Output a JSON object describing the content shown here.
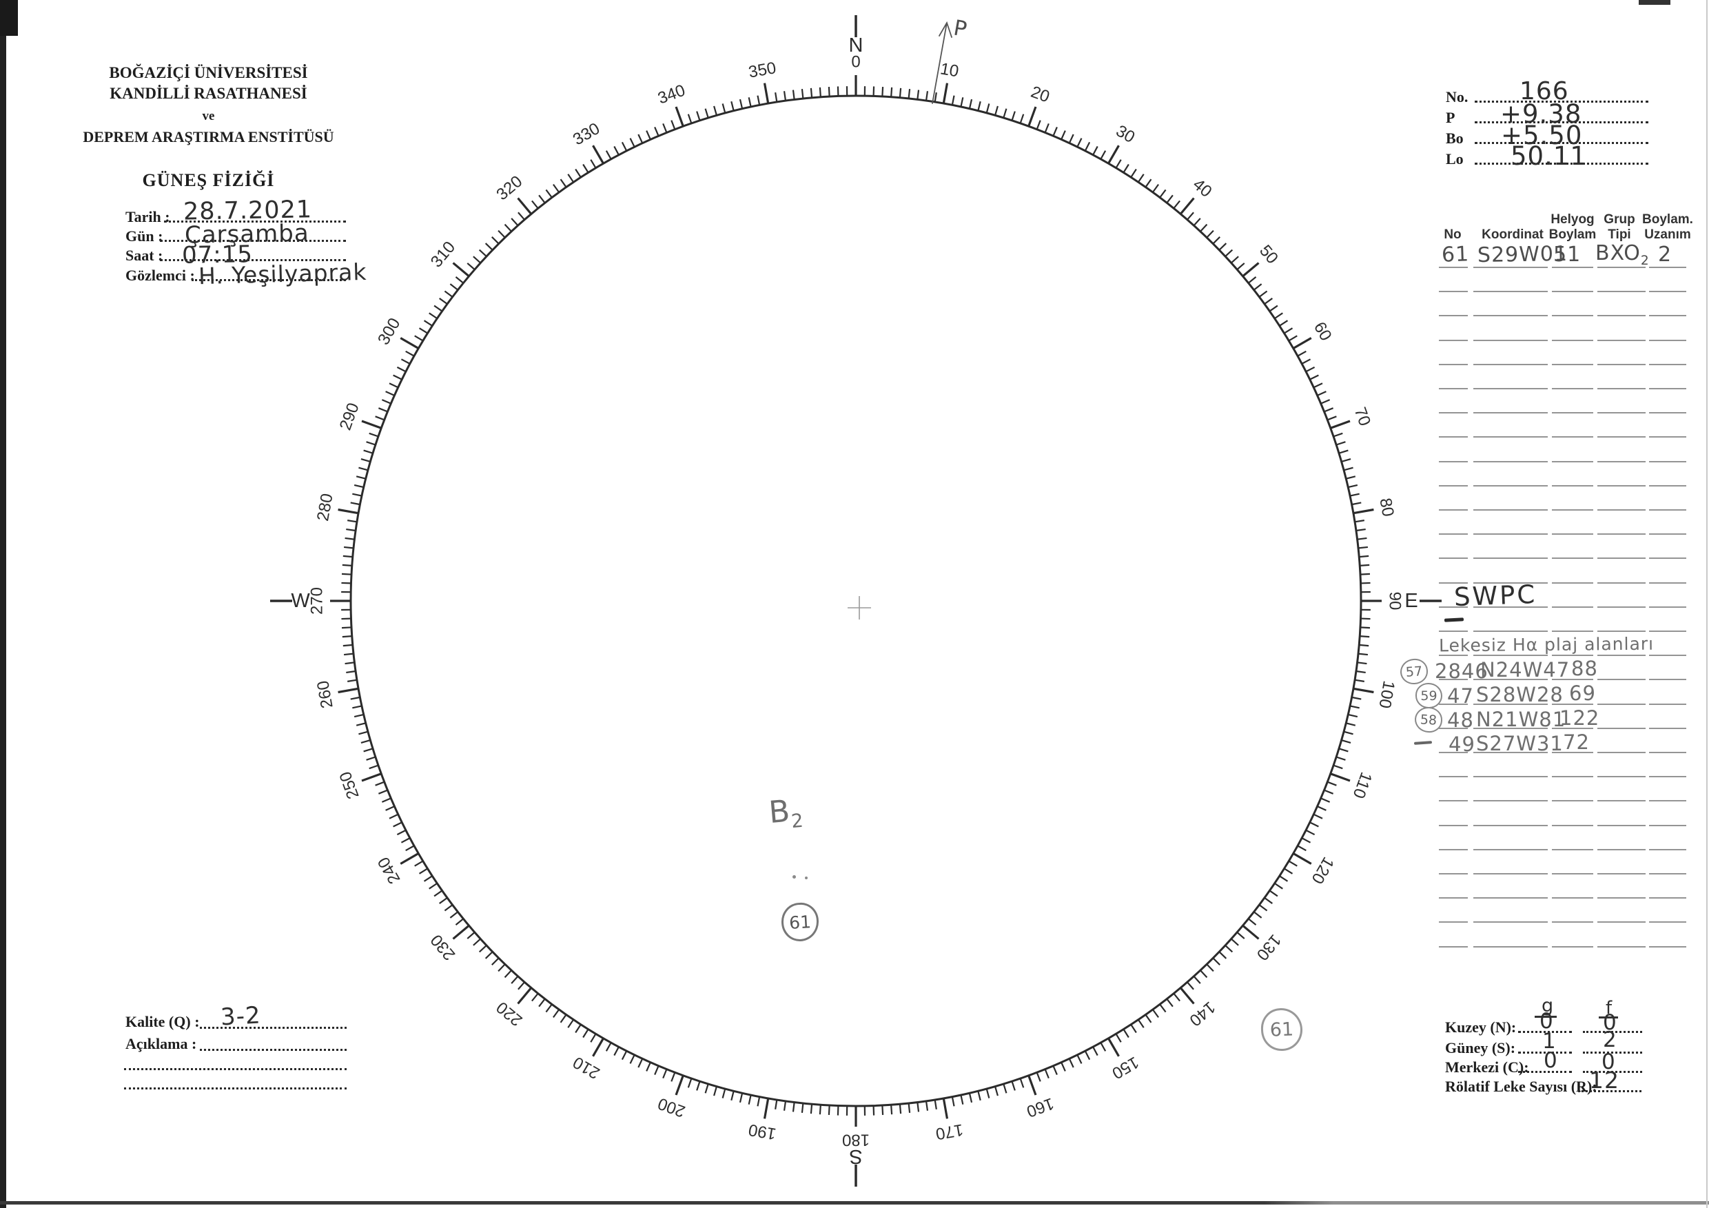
{
  "header": {
    "institution_line1": "BOĞAZİÇİ ÜNİVERSİTESİ",
    "institution_line2": "KANDİLLİ RASATHANESİ",
    "institution_line3": "ve",
    "institution_line4": "DEPREM ARAŞTIRMA ENSTİTÜSÜ",
    "department": "GÜNEŞ FİZİĞİ"
  },
  "observation": {
    "fields": [
      {
        "label": "Tarih :",
        "value": "28.7.2021"
      },
      {
        "label": "Gün :",
        "value": "Çarşamba"
      },
      {
        "label": "Saat :",
        "value": "07:15"
      },
      {
        "label": "Gözlemci :",
        "value": "H. Yeşilyaprak"
      }
    ]
  },
  "ephemeris": {
    "fields": [
      {
        "label": "No.",
        "value": "166"
      },
      {
        "label": "P",
        "value": "+9.38"
      },
      {
        "label": "Bo",
        "value": "+5.50"
      },
      {
        "label": "Lo",
        "value": "50.11"
      }
    ]
  },
  "group_table": {
    "headers": [
      {
        "line1": "No",
        "line2": ""
      },
      {
        "line1": "Koordinat",
        "line2": ""
      },
      {
        "line1": "Helyog",
        "line2": "Boylam"
      },
      {
        "line1": "Grup",
        "line2": "Tipi"
      },
      {
        "line1": "Boylam.",
        "line2": "Uzanım"
      }
    ],
    "entry": {
      "no": "61",
      "koordinat": "S29W01",
      "helyog_boylam": "51",
      "grup_tipi": "BXO",
      "grup_tipi_sub": "2",
      "boylam_uzanim": "2"
    },
    "empty_row_count": 29
  },
  "swpc": {
    "title": "SWPC",
    "subtitle": "Lekesiz Hα plaj alanları",
    "rows": [
      {
        "badge": "57",
        "circled": true,
        "region": "2846",
        "coord": "N24W47",
        "area": "88"
      },
      {
        "badge": "59",
        "circled": true,
        "region": "47",
        "coord": "S28W28",
        "area": "69"
      },
      {
        "badge": "58",
        "circled": true,
        "region": "48",
        "coord": "N21W81",
        "area": "122"
      },
      {
        "badge": "",
        "circled": false,
        "region": "49",
        "coord": "S27W31",
        "area": "72"
      }
    ]
  },
  "counts": {
    "col_header_g": "g",
    "col_header_f": "f",
    "rows": [
      {
        "label": "Kuzey (N):",
        "g": "0",
        "f": "0"
      },
      {
        "label": "Güney (S):",
        "g": "1",
        "f": "2"
      },
      {
        "label": "Merkezi (C):",
        "g": "0",
        "f": "0"
      }
    ],
    "relative_label": "Rölatif Leke Sayısı (R):",
    "relative_value": "12"
  },
  "quality": {
    "label": "Kalite (Q) :",
    "value": "3-2"
  },
  "note": {
    "label": "Açıklama :"
  },
  "annotations": {
    "pole_arrow_label": "P",
    "center_group_type": "B",
    "center_group_type_sub": "2",
    "center_group_number": "61",
    "margin_group_number": "61"
  },
  "compass": {
    "degree_labels": [
      "0",
      "10",
      "20",
      "30",
      "40",
      "50",
      "60",
      "70",
      "80",
      "90",
      "100",
      "110",
      "120",
      "130",
      "140",
      "150",
      "160",
      "170",
      "180",
      "190",
      "200",
      "210",
      "220",
      "230",
      "240",
      "250",
      "260",
      "270",
      "280",
      "290",
      "300",
      "310",
      "320",
      "330",
      "340",
      "350"
    ],
    "cardinals": {
      "north": "N",
      "east": "E",
      "south": "S",
      "west": "W"
    }
  },
  "colors": {
    "print": "#2b2b2b",
    "pencil": "#6e6e6e",
    "ink": "#2f2f2f",
    "table_line": "#949494"
  }
}
